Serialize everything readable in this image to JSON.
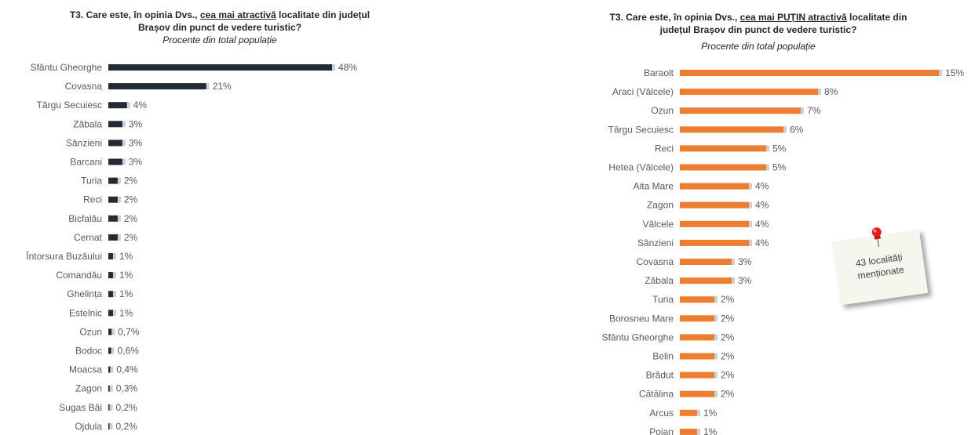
{
  "left": {
    "title_pre": "T3. Care este, în opinia Dvs., ",
    "title_underlined": "cea mai atractivă",
    "title_post_line1": " localitate din județul",
    "title_line2": "Brașov din punct de vedere turistic?",
    "subtitle": "Procente din total populație"
  },
  "right": {
    "title_pre": "T3. Care este, în opinia Dvs., ",
    "title_underlined": "cea mai PUȚIN atractivă",
    "title_post_line1": " localitate din",
    "title_line2": "județul Brașov din punct de vedere turistic?",
    "subtitle": "Procente din total populație",
    "note": "43 localități menționate"
  },
  "colors": {
    "left_bar": "#222a35",
    "right_bar": "#ed7d31"
  },
  "chart_data": [
    {
      "type": "bar",
      "orientation": "horizontal",
      "title": "T3. Care este, în opinia Dvs., cea mai atractivă localitate din județul Brașov din punct de vedere turistic?",
      "subtitle": "Procente din total populație",
      "categories": [
        "Sfântu Gheorghe",
        "Covasna",
        "Târgu Secuiesc",
        "Zăbala",
        "Sânzieni",
        "Barcani",
        "Turia",
        "Reci",
        "Bicfalău",
        "Cernat",
        "Întorsura Buzăului",
        "Comandău",
        "Ghelința",
        "Estelnic",
        "Ozun",
        "Bodoc",
        "Moacsa",
        "Zagon",
        "Sugas Băi",
        "Ojdula"
      ],
      "values": [
        48,
        21,
        4,
        3,
        3,
        3,
        2,
        2,
        2,
        2,
        1,
        1,
        1,
        1,
        0.7,
        0.6,
        0.4,
        0.3,
        0.2,
        0.2
      ],
      "labels": [
        "48%",
        "21%",
        "4%",
        "3%",
        "3%",
        "3%",
        "2%",
        "2%",
        "2%",
        "2%",
        "1%",
        "1%",
        "1%",
        "1%",
        "0,7%",
        "0,6%",
        "0,4%",
        "0,3%",
        "0,2%",
        "0,2%"
      ],
      "unit": "%",
      "color": "#222a35"
    },
    {
      "type": "bar",
      "orientation": "horizontal",
      "title": "T3. Care este, în opinia Dvs., cea mai PUȚIN atractivă localitate din județul Brașov din punct de vedere turistic?",
      "subtitle": "Procente din total populație",
      "categories": [
        "Baraolt",
        "Araci (Vâlcele)",
        "Ozun",
        "Târgu Secuiesc",
        "Reci",
        "Hetea (Vâlcele)",
        "Aita Mare",
        "Zagon",
        "Vâlcele",
        "Sânzieni",
        "Covasna",
        "Zăbala",
        "Turia",
        "Borosneu Mare",
        "Sfântu Gheorghe",
        "Belin",
        "Brădut",
        "Cătălina",
        "Arcus",
        "Poian"
      ],
      "values": [
        15,
        8,
        7,
        6,
        5,
        5,
        4,
        4,
        4,
        4,
        3,
        3,
        2,
        2,
        2,
        2,
        2,
        2,
        1,
        1
      ],
      "labels": [
        "15%",
        "8%",
        "7%",
        "6%",
        "5%",
        "5%",
        "4%",
        "4%",
        "4%",
        "4%",
        "3%",
        "3%",
        "2%",
        "2%",
        "2%",
        "2%",
        "2%",
        "2%",
        "1%",
        "1%"
      ],
      "unit": "%",
      "color": "#ed7d31"
    }
  ]
}
